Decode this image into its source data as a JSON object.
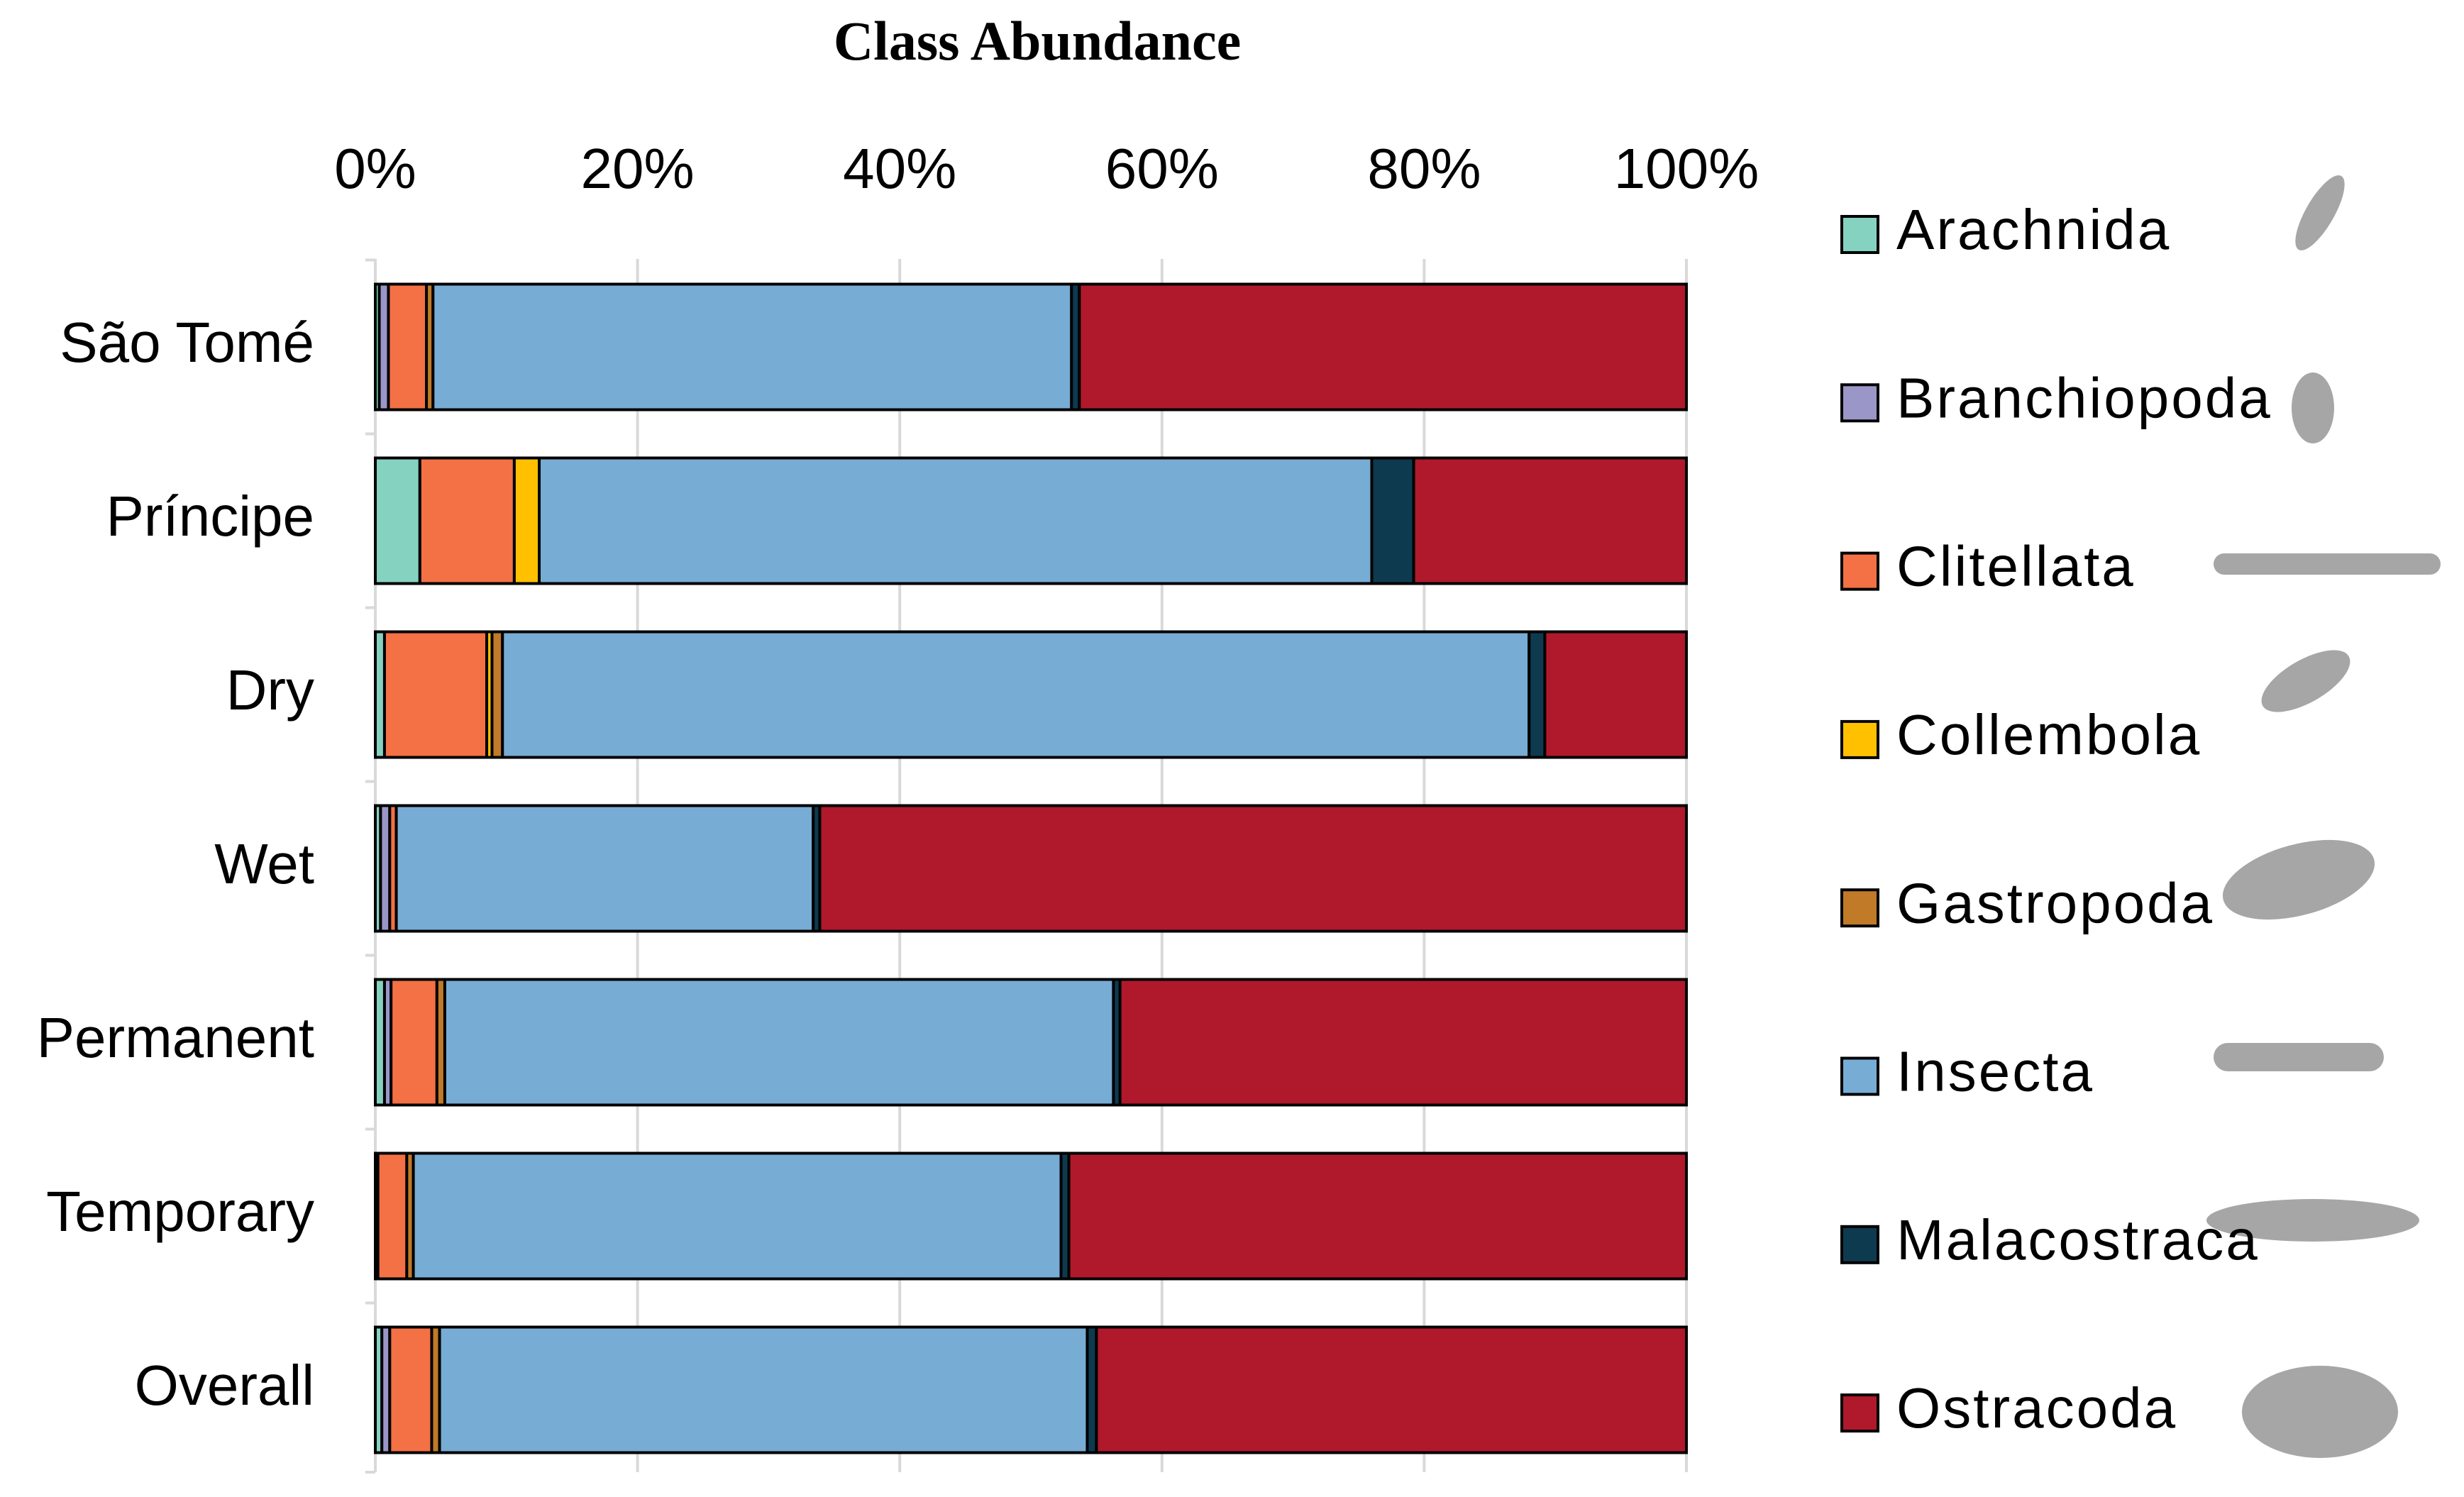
{
  "chart_data": {
    "type": "stacked-bar-horizontal",
    "title": "Class Abundance",
    "categories": [
      "São Tomé",
      "Príncipe",
      "Dry",
      "Wet",
      "Permanent",
      "Temporary",
      "Overall"
    ],
    "series": [
      {
        "name": "Arachnida",
        "color": "#86d2c0",
        "values": [
          0.3,
          3.4,
          0.7,
          0.4,
          0.7,
          0.2,
          0.5
        ]
      },
      {
        "name": "Branchiopoda",
        "color": "#9b96c8",
        "values": [
          0.7,
          0,
          0,
          0.7,
          0.5,
          0,
          0.6
        ]
      },
      {
        "name": "Clitellata",
        "color": "#f47045",
        "values": [
          2.9,
          7.2,
          7.8,
          0.5,
          3.5,
          2.2,
          3.2
        ]
      },
      {
        "name": "Collembola",
        "color": "#ffc000",
        "values": [
          0,
          1.9,
          0.4,
          0,
          0,
          0,
          0
        ]
      },
      {
        "name": "Gastropoda",
        "color": "#c07a28",
        "values": [
          0.5,
          0,
          0.8,
          0,
          0.6,
          0.5,
          0.6
        ]
      },
      {
        "name": "Insecta",
        "color": "#77acd4",
        "values": [
          48.7,
          63.5,
          78.3,
          31.8,
          51.0,
          49.4,
          49.4
        ]
      },
      {
        "name": "Malacostraca",
        "color": "#0e3a50",
        "values": [
          0.6,
          3.2,
          1.2,
          0.5,
          0.5,
          0.6,
          0.7
        ]
      },
      {
        "name": "Ostracoda",
        "color": "#b0192b",
        "values": [
          46.3,
          20.8,
          10.8,
          66.1,
          43.2,
          47.1,
          45.0
        ]
      }
    ],
    "xlim": [
      0,
      100
    ],
    "xticks": [
      {
        "value": 0,
        "label": "0%"
      },
      {
        "value": 20,
        "label": "20%"
      },
      {
        "value": 40,
        "label": "40%"
      },
      {
        "value": 60,
        "label": "60%"
      },
      {
        "value": 80,
        "label": "80%"
      },
      {
        "value": 100,
        "label": "100%"
      }
    ],
    "grid": true,
    "legend": "right"
  }
}
